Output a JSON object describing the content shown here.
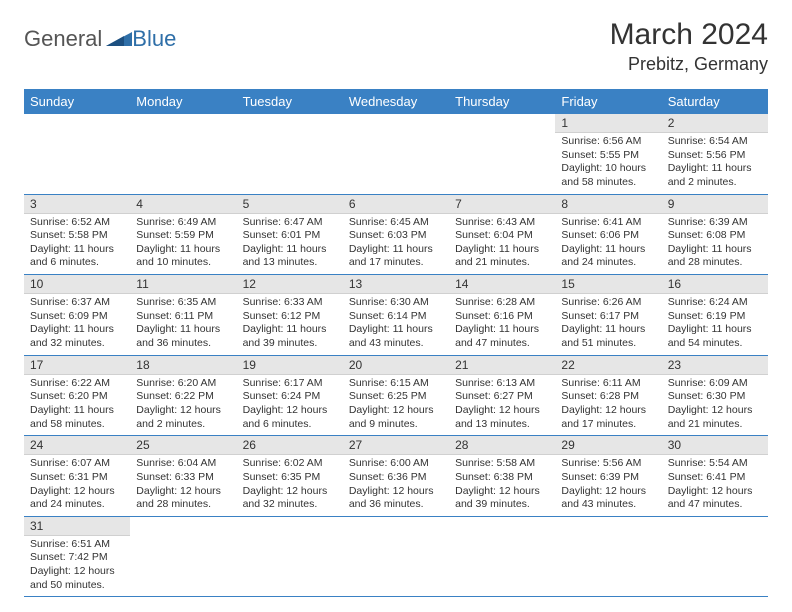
{
  "brand": {
    "part1": "General",
    "part2": "Blue"
  },
  "title": "March 2024",
  "location": "Prebitz, Germany",
  "colors": {
    "header_bg": "#3a81c4",
    "header_text": "#ffffff",
    "daynum_bg": "#e6e6e6",
    "row_divider": "#3a81c4",
    "brand_accent": "#2f6fa8",
    "text": "#333333",
    "background": "#ffffff"
  },
  "weekdays": [
    "Sunday",
    "Monday",
    "Tuesday",
    "Wednesday",
    "Thursday",
    "Friday",
    "Saturday"
  ],
  "weeks": [
    [
      null,
      null,
      null,
      null,
      null,
      {
        "n": "1",
        "sr": "Sunrise: 6:56 AM",
        "ss": "Sunset: 5:55 PM",
        "d1": "Daylight: 10 hours",
        "d2": "and 58 minutes."
      },
      {
        "n": "2",
        "sr": "Sunrise: 6:54 AM",
        "ss": "Sunset: 5:56 PM",
        "d1": "Daylight: 11 hours",
        "d2": "and 2 minutes."
      }
    ],
    [
      {
        "n": "3",
        "sr": "Sunrise: 6:52 AM",
        "ss": "Sunset: 5:58 PM",
        "d1": "Daylight: 11 hours",
        "d2": "and 6 minutes."
      },
      {
        "n": "4",
        "sr": "Sunrise: 6:49 AM",
        "ss": "Sunset: 5:59 PM",
        "d1": "Daylight: 11 hours",
        "d2": "and 10 minutes."
      },
      {
        "n": "5",
        "sr": "Sunrise: 6:47 AM",
        "ss": "Sunset: 6:01 PM",
        "d1": "Daylight: 11 hours",
        "d2": "and 13 minutes."
      },
      {
        "n": "6",
        "sr": "Sunrise: 6:45 AM",
        "ss": "Sunset: 6:03 PM",
        "d1": "Daylight: 11 hours",
        "d2": "and 17 minutes."
      },
      {
        "n": "7",
        "sr": "Sunrise: 6:43 AM",
        "ss": "Sunset: 6:04 PM",
        "d1": "Daylight: 11 hours",
        "d2": "and 21 minutes."
      },
      {
        "n": "8",
        "sr": "Sunrise: 6:41 AM",
        "ss": "Sunset: 6:06 PM",
        "d1": "Daylight: 11 hours",
        "d2": "and 24 minutes."
      },
      {
        "n": "9",
        "sr": "Sunrise: 6:39 AM",
        "ss": "Sunset: 6:08 PM",
        "d1": "Daylight: 11 hours",
        "d2": "and 28 minutes."
      }
    ],
    [
      {
        "n": "10",
        "sr": "Sunrise: 6:37 AM",
        "ss": "Sunset: 6:09 PM",
        "d1": "Daylight: 11 hours",
        "d2": "and 32 minutes."
      },
      {
        "n": "11",
        "sr": "Sunrise: 6:35 AM",
        "ss": "Sunset: 6:11 PM",
        "d1": "Daylight: 11 hours",
        "d2": "and 36 minutes."
      },
      {
        "n": "12",
        "sr": "Sunrise: 6:33 AM",
        "ss": "Sunset: 6:12 PM",
        "d1": "Daylight: 11 hours",
        "d2": "and 39 minutes."
      },
      {
        "n": "13",
        "sr": "Sunrise: 6:30 AM",
        "ss": "Sunset: 6:14 PM",
        "d1": "Daylight: 11 hours",
        "d2": "and 43 minutes."
      },
      {
        "n": "14",
        "sr": "Sunrise: 6:28 AM",
        "ss": "Sunset: 6:16 PM",
        "d1": "Daylight: 11 hours",
        "d2": "and 47 minutes."
      },
      {
        "n": "15",
        "sr": "Sunrise: 6:26 AM",
        "ss": "Sunset: 6:17 PM",
        "d1": "Daylight: 11 hours",
        "d2": "and 51 minutes."
      },
      {
        "n": "16",
        "sr": "Sunrise: 6:24 AM",
        "ss": "Sunset: 6:19 PM",
        "d1": "Daylight: 11 hours",
        "d2": "and 54 minutes."
      }
    ],
    [
      {
        "n": "17",
        "sr": "Sunrise: 6:22 AM",
        "ss": "Sunset: 6:20 PM",
        "d1": "Daylight: 11 hours",
        "d2": "and 58 minutes."
      },
      {
        "n": "18",
        "sr": "Sunrise: 6:20 AM",
        "ss": "Sunset: 6:22 PM",
        "d1": "Daylight: 12 hours",
        "d2": "and 2 minutes."
      },
      {
        "n": "19",
        "sr": "Sunrise: 6:17 AM",
        "ss": "Sunset: 6:24 PM",
        "d1": "Daylight: 12 hours",
        "d2": "and 6 minutes."
      },
      {
        "n": "20",
        "sr": "Sunrise: 6:15 AM",
        "ss": "Sunset: 6:25 PM",
        "d1": "Daylight: 12 hours",
        "d2": "and 9 minutes."
      },
      {
        "n": "21",
        "sr": "Sunrise: 6:13 AM",
        "ss": "Sunset: 6:27 PM",
        "d1": "Daylight: 12 hours",
        "d2": "and 13 minutes."
      },
      {
        "n": "22",
        "sr": "Sunrise: 6:11 AM",
        "ss": "Sunset: 6:28 PM",
        "d1": "Daylight: 12 hours",
        "d2": "and 17 minutes."
      },
      {
        "n": "23",
        "sr": "Sunrise: 6:09 AM",
        "ss": "Sunset: 6:30 PM",
        "d1": "Daylight: 12 hours",
        "d2": "and 21 minutes."
      }
    ],
    [
      {
        "n": "24",
        "sr": "Sunrise: 6:07 AM",
        "ss": "Sunset: 6:31 PM",
        "d1": "Daylight: 12 hours",
        "d2": "and 24 minutes."
      },
      {
        "n": "25",
        "sr": "Sunrise: 6:04 AM",
        "ss": "Sunset: 6:33 PM",
        "d1": "Daylight: 12 hours",
        "d2": "and 28 minutes."
      },
      {
        "n": "26",
        "sr": "Sunrise: 6:02 AM",
        "ss": "Sunset: 6:35 PM",
        "d1": "Daylight: 12 hours",
        "d2": "and 32 minutes."
      },
      {
        "n": "27",
        "sr": "Sunrise: 6:00 AM",
        "ss": "Sunset: 6:36 PM",
        "d1": "Daylight: 12 hours",
        "d2": "and 36 minutes."
      },
      {
        "n": "28",
        "sr": "Sunrise: 5:58 AM",
        "ss": "Sunset: 6:38 PM",
        "d1": "Daylight: 12 hours",
        "d2": "and 39 minutes."
      },
      {
        "n": "29",
        "sr": "Sunrise: 5:56 AM",
        "ss": "Sunset: 6:39 PM",
        "d1": "Daylight: 12 hours",
        "d2": "and 43 minutes."
      },
      {
        "n": "30",
        "sr": "Sunrise: 5:54 AM",
        "ss": "Sunset: 6:41 PM",
        "d1": "Daylight: 12 hours",
        "d2": "and 47 minutes."
      }
    ],
    [
      {
        "n": "31",
        "sr": "Sunrise: 6:51 AM",
        "ss": "Sunset: 7:42 PM",
        "d1": "Daylight: 12 hours",
        "d2": "and 50 minutes."
      },
      null,
      null,
      null,
      null,
      null,
      null
    ]
  ]
}
